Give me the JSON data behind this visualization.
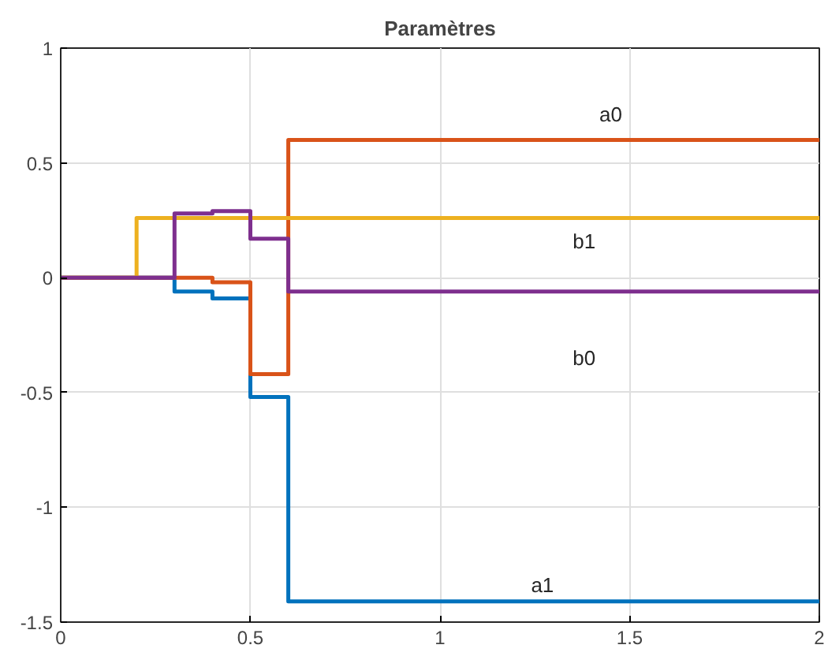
{
  "chart_data": {
    "type": "step",
    "title": "Paramètres",
    "xlim": [
      0,
      2
    ],
    "ylim": [
      -1.5,
      1
    ],
    "xticks": [
      0,
      0.5,
      1,
      1.5,
      2
    ],
    "yticks": [
      -1.5,
      -1,
      -0.5,
      0,
      0.5,
      1
    ],
    "grid": true,
    "series": [
      {
        "color": "#0072bd",
        "x": [
          0,
          0.3,
          0.4,
          0.5,
          0.6,
          2
        ],
        "values": [
          0,
          -0.06,
          -0.09,
          -0.52,
          -1.41,
          -1.41
        ]
      },
      {
        "color": "#d95319",
        "x": [
          0,
          0.3,
          0.4,
          0.5,
          0.6,
          2
        ],
        "values": [
          0,
          0,
          -0.02,
          -0.42,
          0.6,
          0.6
        ]
      },
      {
        "color": "#edb120",
        "x": [
          0,
          0.2,
          2
        ],
        "values": [
          0,
          0.26,
          0.26
        ]
      },
      {
        "color": "#7e2f8e",
        "x": [
          0,
          0.3,
          0.4,
          0.5,
          0.6,
          2
        ],
        "values": [
          0,
          0.28,
          0.29,
          0.17,
          -0.06,
          -0.06
        ]
      }
    ],
    "annotations": [
      {
        "text": "a0",
        "x": 1.45,
        "y": 0.71
      },
      {
        "text": "b1",
        "x": 1.38,
        "y": 0.16
      },
      {
        "text": "b0",
        "x": 1.38,
        "y": -0.35
      },
      {
        "text": "a1",
        "x": 1.27,
        "y": -1.34
      }
    ]
  }
}
